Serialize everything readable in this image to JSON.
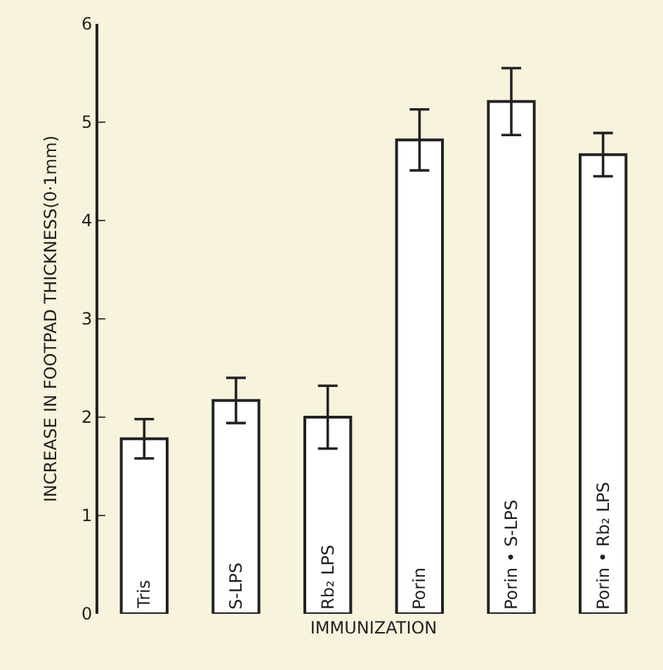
{
  "chart_data": {
    "type": "bar",
    "xlabel": "IMMUNIZATION",
    "ylabel": "INCREASE IN FOOTPAD THICKNESS(0·1mm)",
    "categories": [
      "Tris",
      "S-LPS",
      "Rb₂ LPS",
      "Porin",
      "Porin • S-LPS",
      "Porin • Rb₂ LPS"
    ],
    "values": [
      1.78,
      2.17,
      2.0,
      4.82,
      5.21,
      4.67
    ],
    "errors": [
      0.2,
      0.23,
      0.32,
      0.31,
      0.34,
      0.22
    ],
    "color": "#ffffff",
    "ylim": [
      0,
      6
    ],
    "yticks": [
      0,
      1,
      2,
      3,
      4,
      5,
      6
    ],
    "grid": false,
    "legend": false
  }
}
